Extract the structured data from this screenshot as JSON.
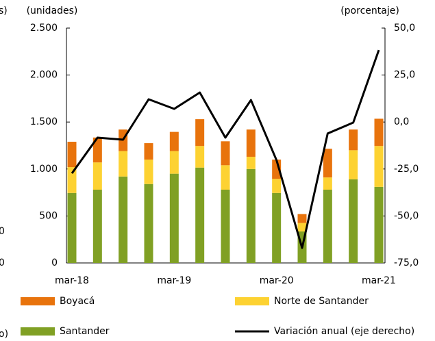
{
  "chart_data": {
    "type": "bar",
    "stacked": true,
    "categories": [
      "mar-18",
      null,
      null,
      null,
      "mar-19",
      null,
      null,
      null,
      "mar-20",
      null,
      null,
      null,
      "mar-21"
    ],
    "y_unit_label": "(unidades)",
    "y2_unit_label": "(porcentaje)",
    "ylim": [
      0,
      2500
    ],
    "yticks": [
      0,
      500,
      {
        "value": 1000,
        "label": "1.000"
      },
      {
        "value": 1500,
        "label": "1.500"
      },
      {
        "value": 2000,
        "label": "2.000"
      },
      {
        "value": 2500,
        "label": "2.500"
      }
    ],
    "y2lim": [
      -75,
      50
    ],
    "y2ticks": [
      {
        "value": -75,
        "label": "-75,0"
      },
      {
        "value": -50,
        "label": "-50,0"
      },
      {
        "value": -25,
        "label": "-25,0"
      },
      {
        "value": 0,
        "label": "0,0"
      },
      {
        "value": 25,
        "label": "25,0"
      },
      {
        "value": 50,
        "label": "50,0"
      }
    ],
    "series": [
      {
        "name": "Santander",
        "color": "#80a024",
        "values": [
          745,
          780,
          920,
          840,
          950,
          1015,
          780,
          1000,
          745,
          335,
          780,
          890,
          810
        ]
      },
      {
        "name": "Norte de Santander",
        "color": "#fdd232",
        "values": [
          275,
          290,
          270,
          260,
          240,
          230,
          260,
          130,
          150,
          90,
          130,
          310,
          435
        ]
      },
      {
        "name": "Boyacá",
        "color": "#e8730c",
        "values": [
          270,
          265,
          230,
          175,
          205,
          285,
          255,
          290,
          205,
          95,
          305,
          220,
          290
        ]
      },
      {
        "name": "Variación anual (eje derecho)",
        "color": "#000000",
        "type": "line",
        "axis": "y2",
        "values": [
          -27.3,
          -8.3,
          -9.4,
          12.1,
          7.0,
          15.7,
          -8.3,
          11.7,
          -20.3,
          -67.0,
          -6.1,
          -0.3,
          38.3
        ]
      }
    ],
    "annotations": [
      "s)",
      "0",
      "0",
      "o)"
    ]
  }
}
